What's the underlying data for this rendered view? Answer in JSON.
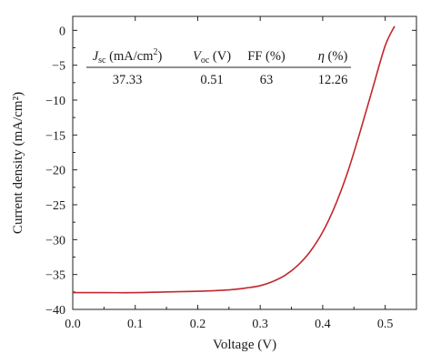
{
  "chart_data": {
    "type": "line",
    "xlabel": "Voltage (V)",
    "ylabel": "Current density (mA/cm²)",
    "xlim": [
      0.0,
      0.55
    ],
    "ylim": [
      -40,
      2
    ],
    "x_ticks": [
      0.0,
      0.1,
      0.2,
      0.3,
      0.4,
      0.5
    ],
    "x_tick_labels": [
      "0.0",
      "0.1",
      "0.2",
      "0.3",
      "0.4",
      "0.5"
    ],
    "y_ticks": [
      0,
      -5,
      -10,
      -15,
      -20,
      -25,
      -30,
      -35,
      -40
    ],
    "y_tick_labels": [
      "0",
      "−5",
      "−10",
      "−15",
      "−20",
      "−25",
      "−30",
      "−35",
      "−40"
    ],
    "grid": false,
    "line_color": "#c1272d",
    "series": [
      {
        "x": [
          0.0,
          0.05,
          0.1,
          0.15,
          0.2,
          0.25,
          0.28,
          0.3,
          0.32,
          0.34,
          0.36,
          0.38,
          0.4,
          0.42,
          0.44,
          0.46,
          0.48,
          0.5,
          0.515
        ],
        "y": [
          -37.6,
          -37.6,
          -37.6,
          -37.5,
          -37.4,
          -37.2,
          -36.9,
          -36.6,
          -36.0,
          -35.1,
          -33.7,
          -31.7,
          -28.9,
          -25.1,
          -20.3,
          -14.5,
          -8.3,
          -2.2,
          0.6
        ]
      }
    ],
    "inset_table": {
      "headers": [
        {
          "main": "J",
          "sub": "sc",
          "rest": " (mA/cm",
          "sup": "2",
          "end": ")"
        },
        {
          "main": "V",
          "sub": "oc",
          "rest": " (V)",
          "sup": "",
          "end": ""
        },
        {
          "main": "FF (%)",
          "sub": "",
          "rest": "",
          "sup": "",
          "end": ""
        },
        {
          "main": "η",
          "sub": "",
          "rest": " (%)",
          "sup": "",
          "end": ""
        }
      ],
      "values": [
        "37.33",
        "0.51",
        "63",
        "12.26"
      ]
    }
  }
}
